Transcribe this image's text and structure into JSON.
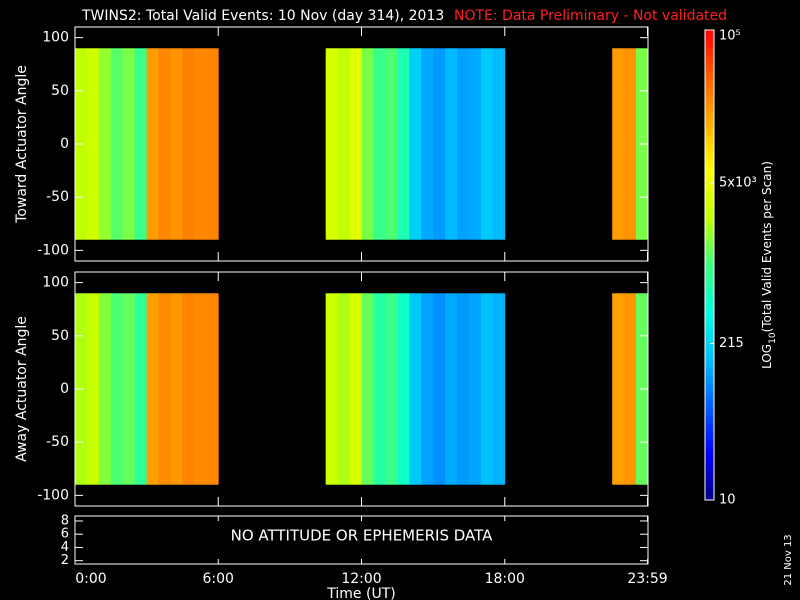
{
  "title": "TWINS2: Total Valid Events: 10 Nov (day 314), 2013",
  "note": "NOTE: Data Preliminary - Not validated",
  "date_stamp": "21 Nov 13",
  "colorbar": {
    "label_main": "LOG",
    "label_sub": "10",
    "label_rest": "(Total Valid Events per Scan)",
    "lim": [
      10,
      100000
    ],
    "log": true,
    "ticks": [
      10,
      215,
      {
        "value": 5000,
        "label": "5x10³"
      },
      {
        "value": 100000,
        "label": "10⁵"
      }
    ],
    "colors": [
      "#000080",
      "#0000ff",
      "#0060ff",
      "#00c0ff",
      "#00ffe0",
      "#40ff80",
      "#c0ff00",
      "#ffff00",
      "#ffb000",
      "#ff6000",
      "#ff0000"
    ]
  },
  "chart_data": [
    {
      "type": "heatmap",
      "ylabel": "Toward Actuator Angle",
      "xlim": [
        0,
        24
      ],
      "ylim": [
        -110,
        110
      ],
      "yticks": [
        -100,
        -50,
        0,
        50,
        100
      ],
      "y": [
        -90,
        90
      ],
      "x": [
        0,
        0.5,
        1,
        1.5,
        2,
        2.5,
        3,
        3.5,
        4,
        4.5,
        5,
        5.5,
        6,
        6.5,
        7,
        7.5,
        8,
        8.5,
        9,
        9.5,
        10,
        10.5,
        11,
        11.5,
        12,
        12.5,
        13,
        13.5,
        14,
        14.5,
        15,
        15.5,
        16,
        16.5,
        17,
        17.5,
        18,
        18.5,
        19,
        19.5,
        20,
        20.5,
        21,
        21.5,
        22,
        22.5,
        23,
        23.5
      ],
      "values": [
        2500,
        3000,
        1800,
        1200,
        1500,
        900,
        20000,
        25000,
        22000,
        28000,
        25000,
        26000,
        null,
        null,
        null,
        null,
        null,
        null,
        null,
        null,
        null,
        3500,
        2500,
        4000,
        1500,
        900,
        1100,
        600,
        200,
        130,
        110,
        150,
        120,
        130,
        180,
        150,
        null,
        null,
        null,
        null,
        null,
        null,
        null,
        null,
        null,
        20000,
        22000,
        1500
      ]
    },
    {
      "type": "heatmap",
      "ylabel": "Away Actuator Angle",
      "xlim": [
        0,
        24
      ],
      "ylim": [
        -110,
        110
      ],
      "yticks": [
        -100,
        -50,
        0,
        50,
        100
      ],
      "y": [
        -90,
        90
      ],
      "x": [
        0,
        0.5,
        1,
        1.5,
        2,
        2.5,
        3,
        3.5,
        4,
        4.5,
        5,
        5.5,
        6,
        6.5,
        7,
        7.5,
        8,
        8.5,
        9,
        9.5,
        10,
        10.5,
        11,
        11.5,
        12,
        12.5,
        13,
        13.5,
        14,
        14.5,
        15,
        15.5,
        16,
        16.5,
        17,
        17.5,
        18,
        18.5,
        19,
        19.5,
        20,
        20.5,
        21,
        21.5,
        22,
        22.5,
        23,
        23.5
      ],
      "values": [
        2200,
        2800,
        1600,
        1100,
        1300,
        800,
        19000,
        24000,
        21000,
        27000,
        24000,
        25000,
        null,
        null,
        null,
        null,
        null,
        null,
        null,
        null,
        null,
        3000,
        2200,
        3500,
        1300,
        700,
        900,
        500,
        180,
        120,
        100,
        130,
        110,
        120,
        160,
        140,
        null,
        null,
        null,
        null,
        null,
        null,
        null,
        null,
        null,
        19000,
        21000,
        1300
      ]
    },
    {
      "type": "line",
      "annotation": "NO ATTITUDE OR EPHEMERIS DATA",
      "xlabel": "Time (UT)",
      "xlim": [
        0,
        24
      ],
      "ylim": [
        1.5,
        8.75
      ],
      "yticks": [
        2,
        4,
        6,
        8
      ],
      "xticks": [
        {
          "value": 0,
          "label": "0:00"
        },
        {
          "value": 6,
          "label": "6:00"
        },
        {
          "value": 12,
          "label": "12:00"
        },
        {
          "value": 18,
          "label": "18:00"
        },
        {
          "value": 23.98,
          "label": "23:59"
        }
      ]
    }
  ]
}
